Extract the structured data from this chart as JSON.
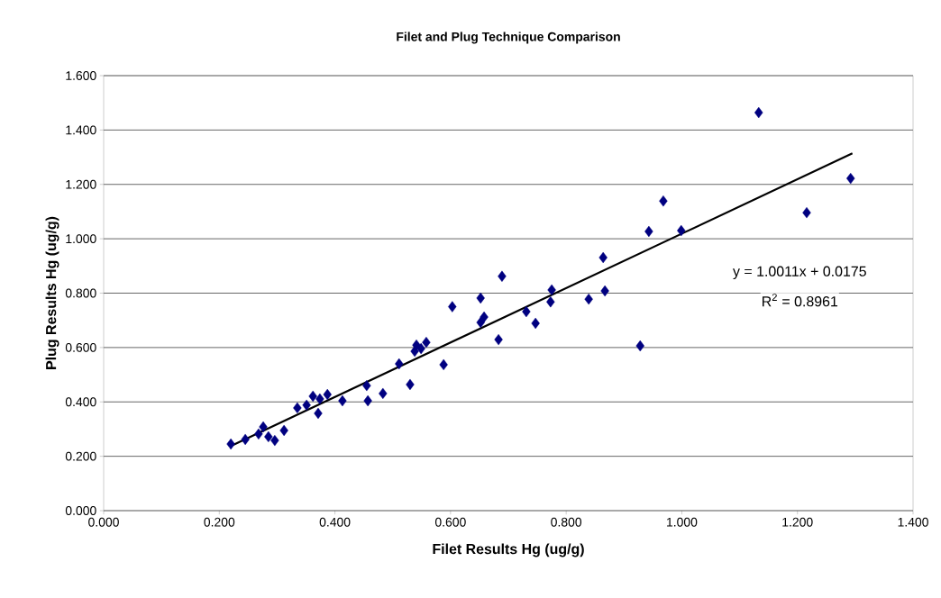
{
  "chart_data": {
    "type": "scatter",
    "title": "Filet and Plug Technique Comparison",
    "xlabel": "Filet Results Hg (ug/g)",
    "ylabel": "Plug Results Hg (ug/g)",
    "xlim": [
      0,
      1.4
    ],
    "ylim": [
      0,
      1.6
    ],
    "xticks": [
      {
        "value": 0,
        "label": "0.000"
      },
      {
        "value": 0.2,
        "label": "0.200"
      },
      {
        "value": 0.4,
        "label": "0.400"
      },
      {
        "value": 0.6,
        "label": "0.600"
      },
      {
        "value": 0.8,
        "label": "0.800"
      },
      {
        "value": 1.0,
        "label": "1.000"
      },
      {
        "value": 1.2,
        "label": "1.200"
      },
      {
        "value": 1.4,
        "label": "1.400"
      }
    ],
    "yticks": [
      {
        "value": 0,
        "label": "0.000"
      },
      {
        "value": 0.2,
        "label": "0.200"
      },
      {
        "value": 0.4,
        "label": "0.400"
      },
      {
        "value": 0.6,
        "label": "0.600"
      },
      {
        "value": 0.8,
        "label": "0.800"
      },
      {
        "value": 1.0,
        "label": "1.000"
      },
      {
        "value": 1.2,
        "label": "1.200"
      },
      {
        "value": 1.4,
        "label": "1.400"
      },
      {
        "value": 1.6,
        "label": "1.600"
      }
    ],
    "grid": "y",
    "marker": "diamond",
    "series": [
      {
        "color": "#000080",
        "x": [
          0.22,
          0.245,
          0.268,
          0.276,
          0.285,
          0.296,
          0.312,
          0.335,
          0.351,
          0.362,
          0.374,
          0.371,
          0.387,
          0.413,
          0.455,
          0.457,
          0.483,
          0.511,
          0.53,
          0.538,
          0.541,
          0.549,
          0.558,
          0.588,
          0.603,
          0.652,
          0.658,
          0.652,
          0.683,
          0.689,
          0.731,
          0.747,
          0.773,
          0.775,
          0.839,
          0.867,
          0.864,
          0.928,
          0.943,
          0.968,
          0.999,
          1.133,
          1.216,
          1.292
        ],
        "values": [
          0.245,
          0.262,
          0.282,
          0.308,
          0.272,
          0.258,
          0.295,
          0.378,
          0.388,
          0.421,
          0.411,
          0.358,
          0.427,
          0.404,
          0.46,
          0.404,
          0.431,
          0.54,
          0.464,
          0.586,
          0.609,
          0.596,
          0.619,
          0.537,
          0.75,
          0.782,
          0.712,
          0.692,
          0.629,
          0.862,
          0.732,
          0.689,
          0.768,
          0.812,
          0.778,
          0.808,
          0.931,
          0.606,
          1.027,
          1.139,
          1.03,
          1.464,
          1.096,
          1.222
        ]
      },
      {
        "type": "line",
        "marker": "none",
        "color": "#000000",
        "x": [
          0.22,
          1.295
        ],
        "values": [
          0.238,
          1.314
        ]
      }
    ],
    "annotations": [
      "y = 1.0011x + 0.0175",
      "R$^{2}$ = 0.8961"
    ]
  }
}
